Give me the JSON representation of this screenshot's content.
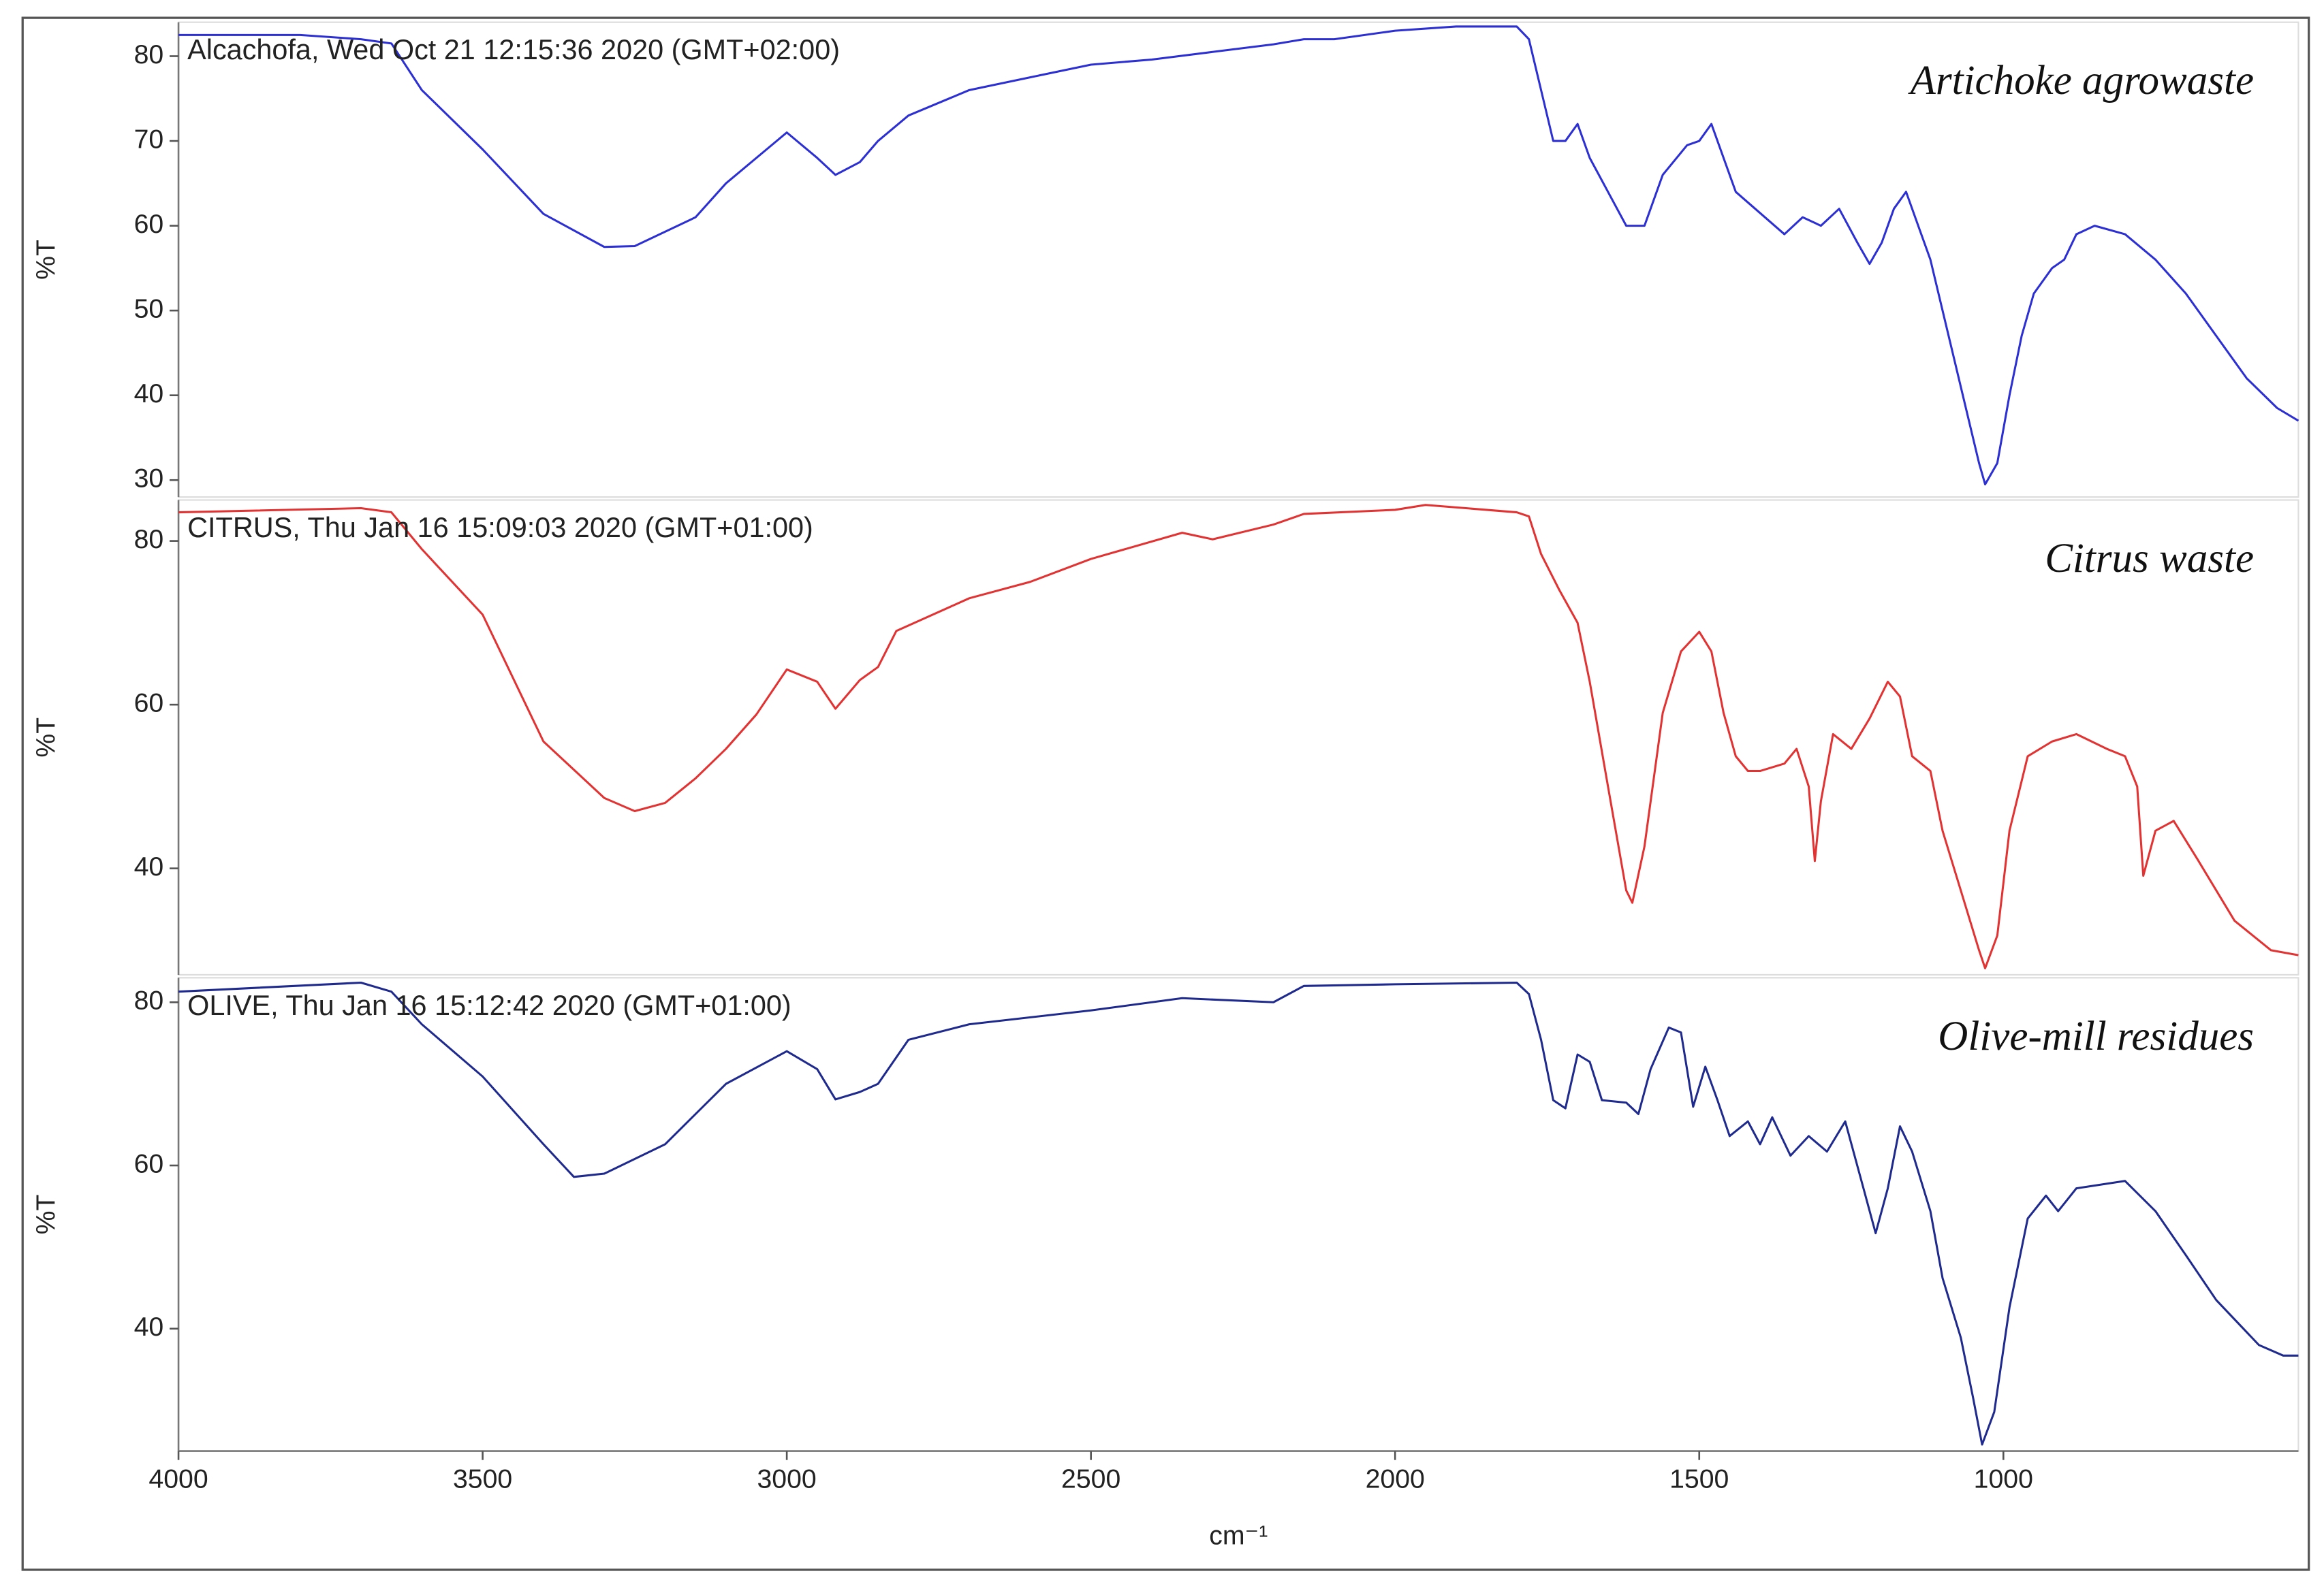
{
  "chart_data": [
    {
      "type": "line",
      "title": "Alcachofa, Wed Oct 21 12:15:36 2020 (GMT+02:00)",
      "annotation": "Artichoke agrowaste",
      "ylabel": "%T",
      "color": "#2b2fd4",
      "xlim": [
        4000,
        515
      ],
      "ylim": [
        28,
        84
      ],
      "yticks": [
        30,
        40,
        50,
        60,
        70,
        80
      ],
      "x": [
        4000,
        3800,
        3700,
        3650,
        3600,
        3500,
        3400,
        3300,
        3250,
        3150,
        3100,
        3000,
        2950,
        2920,
        2880,
        2850,
        2800,
        2700,
        2600,
        2500,
        2400,
        2300,
        2200,
        2150,
        2100,
        2000,
        1900,
        1800,
        1780,
        1760,
        1740,
        1720,
        1700,
        1680,
        1650,
        1620,
        1590,
        1560,
        1520,
        1500,
        1480,
        1460,
        1440,
        1400,
        1360,
        1330,
        1300,
        1270,
        1240,
        1220,
        1200,
        1180,
        1160,
        1140,
        1120,
        1100,
        1080,
        1060,
        1040,
        1030,
        1010,
        990,
        970,
        950,
        920,
        900,
        880,
        850,
        800,
        750,
        700,
        650,
        600,
        550,
        515
      ],
      "values": [
        82.5,
        82.5,
        82,
        81.5,
        76,
        69,
        61.4,
        57.5,
        57.6,
        61,
        65,
        71,
        68,
        66,
        67.5,
        70,
        73,
        76,
        77.5,
        79,
        79.6,
        80.5,
        81.4,
        82,
        82,
        83,
        83.5,
        83.5,
        82,
        76,
        70,
        70,
        72,
        68,
        64,
        60,
        60,
        66,
        69.5,
        70,
        72,
        68,
        64,
        61.5,
        59,
        61,
        60,
        62,
        58,
        55.5,
        58,
        62,
        64,
        60,
        56,
        50,
        44,
        38,
        32,
        29.5,
        32,
        40,
        47,
        52,
        55,
        56,
        59,
        60,
        59,
        56,
        52,
        47,
        42,
        38.5,
        37
      ]
    },
    {
      "type": "line",
      "title": "CITRUS, Thu Jan 16 15:09:03 2020 (GMT+01:00)",
      "annotation": "Citrus waste",
      "ylabel": "%T",
      "color": "#e23232",
      "xlim": [
        4000,
        515
      ],
      "ylim": [
        27,
        85
      ],
      "yticks": [
        40,
        60,
        80
      ],
      "x": [
        4000,
        3700,
        3650,
        3600,
        3500,
        3400,
        3300,
        3250,
        3200,
        3150,
        3100,
        3050,
        3000,
        2950,
        2920,
        2880,
        2850,
        2820,
        2700,
        2600,
        2500,
        2350,
        2300,
        2200,
        2150,
        2000,
        1950,
        1800,
        1780,
        1760,
        1730,
        1700,
        1680,
        1650,
        1620,
        1610,
        1590,
        1560,
        1530,
        1500,
        1480,
        1460,
        1440,
        1420,
        1400,
        1360,
        1340,
        1320,
        1310,
        1300,
        1280,
        1250,
        1220,
        1190,
        1170,
        1150,
        1120,
        1100,
        1070,
        1040,
        1030,
        1010,
        990,
        960,
        920,
        880,
        830,
        800,
        780,
        770,
        750,
        720,
        680,
        620,
        560,
        515
      ],
      "values": [
        83.5,
        84,
        83.5,
        79,
        71,
        55.5,
        48.6,
        47,
        48,
        51,
        54.6,
        58.8,
        64.3,
        62.8,
        59.5,
        63,
        64.6,
        69,
        73,
        75,
        77.8,
        81,
        80.2,
        82,
        83.3,
        83.8,
        84.4,
        83.5,
        83,
        78.4,
        74,
        70,
        62.8,
        50,
        37.3,
        35.8,
        42.7,
        59,
        66.5,
        68.9,
        66.5,
        59,
        53.7,
        51.9,
        51.9,
        52.8,
        54.6,
        50,
        40.9,
        48.2,
        56.4,
        54.6,
        58.3,
        62.8,
        61,
        53.7,
        51.9,
        44.6,
        37.3,
        30,
        27.8,
        31.8,
        44.6,
        53.7,
        55.5,
        56.4,
        54.6,
        53.7,
        50,
        39.1,
        44.6,
        45.8,
        41,
        33.6,
        30,
        29.4
      ]
    },
    {
      "type": "line",
      "title": "OLIVE, Thu Jan 16 15:12:42 2020 (GMT+01:00)",
      "annotation": "Olive-mill residues",
      "ylabel": "%T",
      "xlabel": "cm⁻¹",
      "color": "#1f2a8f",
      "xlim": [
        4000,
        515
      ],
      "ylim": [
        25,
        83
      ],
      "yticks": [
        40,
        60,
        80
      ],
      "xticks": [
        4000,
        3500,
        3000,
        2500,
        2000,
        1500,
        1000
      ],
      "x": [
        4000,
        3700,
        3650,
        3600,
        3500,
        3400,
        3350,
        3300,
        3200,
        3100,
        3000,
        2950,
        2920,
        2880,
        2850,
        2800,
        2700,
        2500,
        2350,
        2200,
        2150,
        2000,
        1800,
        1780,
        1760,
        1740,
        1720,
        1700,
        1680,
        1660,
        1620,
        1600,
        1580,
        1550,
        1530,
        1510,
        1490,
        1470,
        1450,
        1420,
        1400,
        1380,
        1350,
        1320,
        1290,
        1260,
        1230,
        1210,
        1190,
        1170,
        1150,
        1120,
        1100,
        1070,
        1050,
        1035,
        1015,
        990,
        960,
        930,
        910,
        880,
        800,
        750,
        700,
        650,
        580,
        540,
        515
      ],
      "values": [
        81.3,
        82.4,
        81.3,
        77.3,
        70.9,
        62.6,
        58.6,
        59,
        62.6,
        70,
        74,
        71.8,
        68.1,
        69,
        70,
        75.4,
        77.3,
        79,
        80.5,
        80,
        82,
        82.2,
        82.4,
        81,
        75.4,
        68,
        67,
        73.6,
        72.7,
        68,
        67.7,
        66.3,
        71.8,
        76.9,
        76.3,
        67.2,
        72.1,
        68,
        63.6,
        65.4,
        62.6,
        65.9,
        61.2,
        63.6,
        61.7,
        65.4,
        57.2,
        51.7,
        57.2,
        64.8,
        61.7,
        54.4,
        46.2,
        38.9,
        31.6,
        25.8,
        29.8,
        42.6,
        53.5,
        56.3,
        54.4,
        57.2,
        58.1,
        54.4,
        49,
        43.5,
        38,
        36.7,
        36.7
      ]
    }
  ]
}
